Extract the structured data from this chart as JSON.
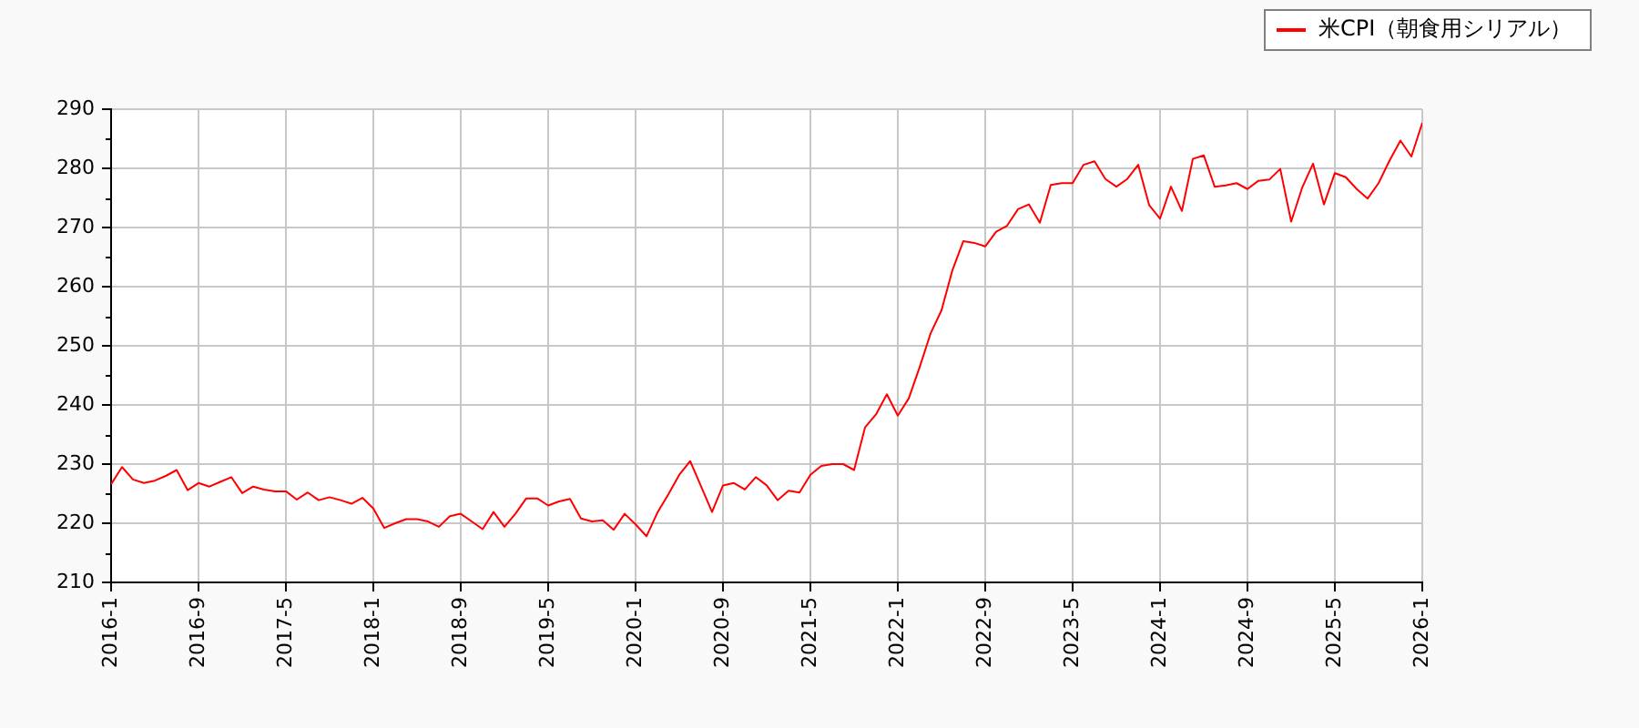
{
  "chart_data": {
    "type": "line",
    "x": [
      "2016-01",
      "2016-02",
      "2016-03",
      "2016-04",
      "2016-05",
      "2016-06",
      "2016-07",
      "2016-08",
      "2016-09",
      "2016-10",
      "2016-11",
      "2016-12",
      "2017-01",
      "2017-02",
      "2017-03",
      "2017-04",
      "2017-05",
      "2017-06",
      "2017-07",
      "2017-08",
      "2017-09",
      "2017-10",
      "2017-11",
      "2017-12",
      "2018-01",
      "2018-02",
      "2018-03",
      "2018-04",
      "2018-05",
      "2018-06",
      "2018-07",
      "2018-08",
      "2018-09",
      "2018-10",
      "2018-11",
      "2018-12",
      "2019-01",
      "2019-02",
      "2019-03",
      "2019-04",
      "2019-05",
      "2019-06",
      "2019-07",
      "2019-08",
      "2019-09",
      "2019-10",
      "2019-11",
      "2019-12",
      "2020-01",
      "2020-02",
      "2020-03",
      "2020-04",
      "2020-05",
      "2020-06",
      "2020-07",
      "2020-08",
      "2020-09",
      "2020-10",
      "2020-11",
      "2020-12",
      "2021-01",
      "2021-02",
      "2021-03",
      "2021-04",
      "2021-05",
      "2021-06",
      "2021-07",
      "2021-08",
      "2021-09",
      "2021-10",
      "2021-11",
      "2021-12",
      "2022-01",
      "2022-02",
      "2022-03",
      "2022-04",
      "2022-05",
      "2022-06",
      "2022-07",
      "2022-08",
      "2022-09",
      "2022-10",
      "2022-11",
      "2022-12",
      "2023-01",
      "2023-02",
      "2023-03",
      "2023-04",
      "2023-05",
      "2023-06",
      "2023-07",
      "2023-08",
      "2023-09",
      "2023-10",
      "2023-11",
      "2023-12",
      "2024-01",
      "2024-02",
      "2024-03",
      "2024-04",
      "2024-05",
      "2024-06",
      "2024-07",
      "2024-08",
      "2024-09",
      "2024-10",
      "2024-11",
      "2024-12",
      "2025-01",
      "2025-02",
      "2025-03",
      "2025-04",
      "2025-05",
      "2025-06",
      "2025-07",
      "2025-08",
      "2025-09",
      "2025-10",
      "2025-11",
      "2025-12",
      "2026-01"
    ],
    "series": [
      {
        "name": "米CPI（朝食用シリアル）",
        "color": "#ff0000",
        "values": [
          226.6,
          229.5,
          227.4,
          226.8,
          227.2,
          228.0,
          229.0,
          225.6,
          226.8,
          226.2,
          227.0,
          227.8,
          225.1,
          226.2,
          225.7,
          225.4,
          225.4,
          224.0,
          225.2,
          223.9,
          224.4,
          223.9,
          223.3,
          224.3,
          222.5,
          219.2,
          220.0,
          220.7,
          220.7,
          220.3,
          219.4,
          221.2,
          221.6,
          220.3,
          219.0,
          221.9,
          219.4,
          221.6,
          224.2,
          224.2,
          223.0,
          223.7,
          224.1,
          220.8,
          220.3,
          220.5,
          218.9,
          221.6,
          219.8,
          217.8,
          221.8,
          224.9,
          228.2,
          230.5,
          226.2,
          221.9,
          226.4,
          226.8,
          225.7,
          227.8,
          226.4,
          223.9,
          225.5,
          225.2,
          228.2,
          229.7,
          230.0,
          230.0,
          229.0,
          236.2,
          238.4,
          241.8,
          238.2,
          241.1,
          246.4,
          252.1,
          256.0,
          262.8,
          267.7,
          267.4,
          266.8,
          269.3,
          270.3,
          273.1,
          273.9,
          270.8,
          277.2,
          277.5,
          277.5,
          280.6,
          281.2,
          278.2,
          276.9,
          278.2,
          280.6,
          273.8,
          271.5,
          276.9,
          272.8,
          281.6,
          282.2,
          276.9,
          277.1,
          277.5,
          276.5,
          277.9,
          278.1,
          279.9,
          271.0,
          276.7,
          280.8,
          273.9,
          279.2,
          278.5,
          276.5,
          274.9,
          277.5,
          281.3,
          284.7,
          282.0,
          287.7
        ]
      }
    ],
    "xlim": [
      "2016-01",
      "2026-01"
    ],
    "xticks": [
      {
        "value": "2016-01",
        "label": "2016-1"
      },
      {
        "value": "2016-09",
        "label": "2016-9"
      },
      {
        "value": "2017-05",
        "label": "2017-5"
      },
      {
        "value": "2018-01",
        "label": "2018-1"
      },
      {
        "value": "2018-09",
        "label": "2018-9"
      },
      {
        "value": "2019-05",
        "label": "2019-5"
      },
      {
        "value": "2020-01",
        "label": "2020-1"
      },
      {
        "value": "2020-09",
        "label": "2020-9"
      },
      {
        "value": "2021-05",
        "label": "2021-5"
      },
      {
        "value": "2022-01",
        "label": "2022-1"
      },
      {
        "value": "2022-09",
        "label": "2022-9"
      },
      {
        "value": "2023-05",
        "label": "2023-5"
      },
      {
        "value": "2024-01",
        "label": "2024-1"
      },
      {
        "value": "2024-09",
        "label": "2024-9"
      },
      {
        "value": "2025-05",
        "label": "2025-5"
      },
      {
        "value": "2026-01",
        "label": "2026-1"
      }
    ],
    "ylim": [
      210,
      290
    ],
    "yticks": [
      210,
      {
        "value": 215,
        "label": null
      },
      220,
      {
        "value": 225,
        "label": null
      },
      230,
      {
        "value": 235,
        "label": null
      },
      240,
      {
        "value": 245,
        "label": null
      },
      250,
      {
        "value": 255,
        "label": null
      },
      260,
      {
        "value": 265,
        "label": null
      },
      270,
      {
        "value": 275,
        "label": null
      },
      280,
      {
        "value": 285,
        "label": null
      },
      290
    ],
    "grid": true,
    "legend": "top right"
  }
}
